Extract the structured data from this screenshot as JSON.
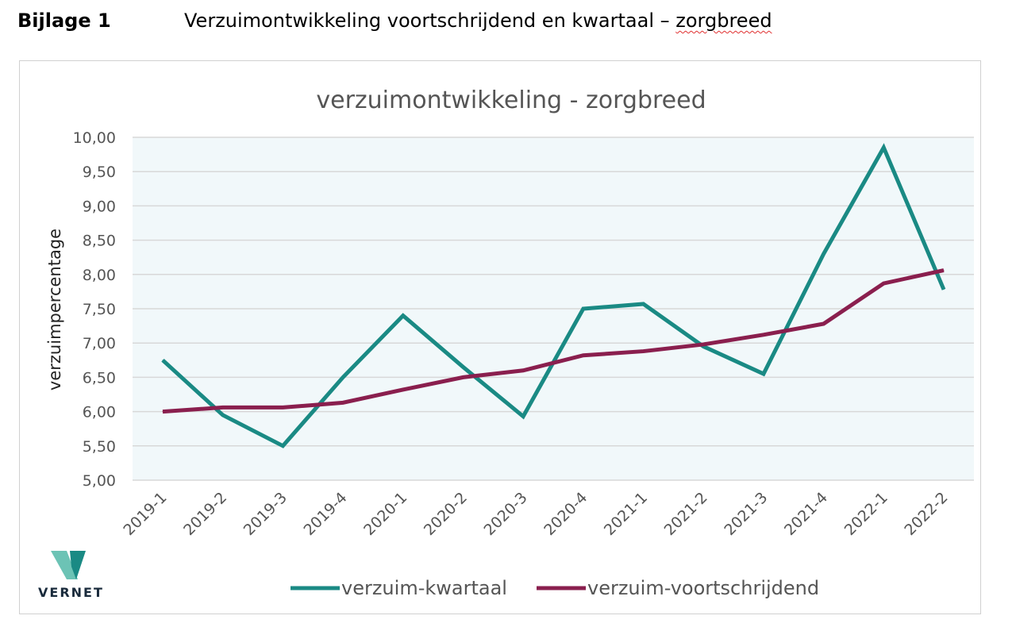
{
  "header": {
    "bijlage": "Bijlage 1",
    "title_main": "Verzuimontwikkeling voortschrijdend en kwartaal – ",
    "title_squiggle": "zorgbreed"
  },
  "logo": {
    "text": "VERNET"
  },
  "colors": {
    "kwartaal": "#1a8a84",
    "voortschrijdend": "#8a1f4e",
    "plot_bg": "#f1f8fa",
    "grid": "#d8d8d8"
  },
  "chart_data": {
    "type": "line",
    "title": "verzuimontwikkeling - zorgbreed",
    "ylabel": "verzuimpercentage",
    "xlabel": "",
    "ylim": [
      5.0,
      10.0
    ],
    "ytick_labels": [
      "5,00",
      "5,50",
      "6,00",
      "6,50",
      "7,00",
      "7,50",
      "8,00",
      "8,50",
      "9,00",
      "9,50",
      "10,00"
    ],
    "grid": true,
    "legend_position": "bottom",
    "categories": [
      "2019-1",
      "2019-2",
      "2019-3",
      "2019-4",
      "2020-1",
      "2020-2",
      "2020-3",
      "2020-4",
      "2021-1",
      "2021-2",
      "2021-3",
      "2021-4",
      "2022-1",
      "2022-2"
    ],
    "series": [
      {
        "name": "verzuim-kwartaal",
        "values": [
          6.75,
          5.95,
          5.5,
          6.5,
          7.4,
          6.65,
          5.93,
          7.5,
          7.57,
          6.95,
          6.55,
          8.3,
          9.85,
          7.78
        ]
      },
      {
        "name": "verzuim-voortschrijdend",
        "values": [
          6.0,
          6.06,
          6.06,
          6.13,
          6.32,
          6.5,
          6.6,
          6.82,
          6.88,
          6.98,
          7.12,
          7.28,
          7.87,
          8.06
        ]
      }
    ]
  }
}
